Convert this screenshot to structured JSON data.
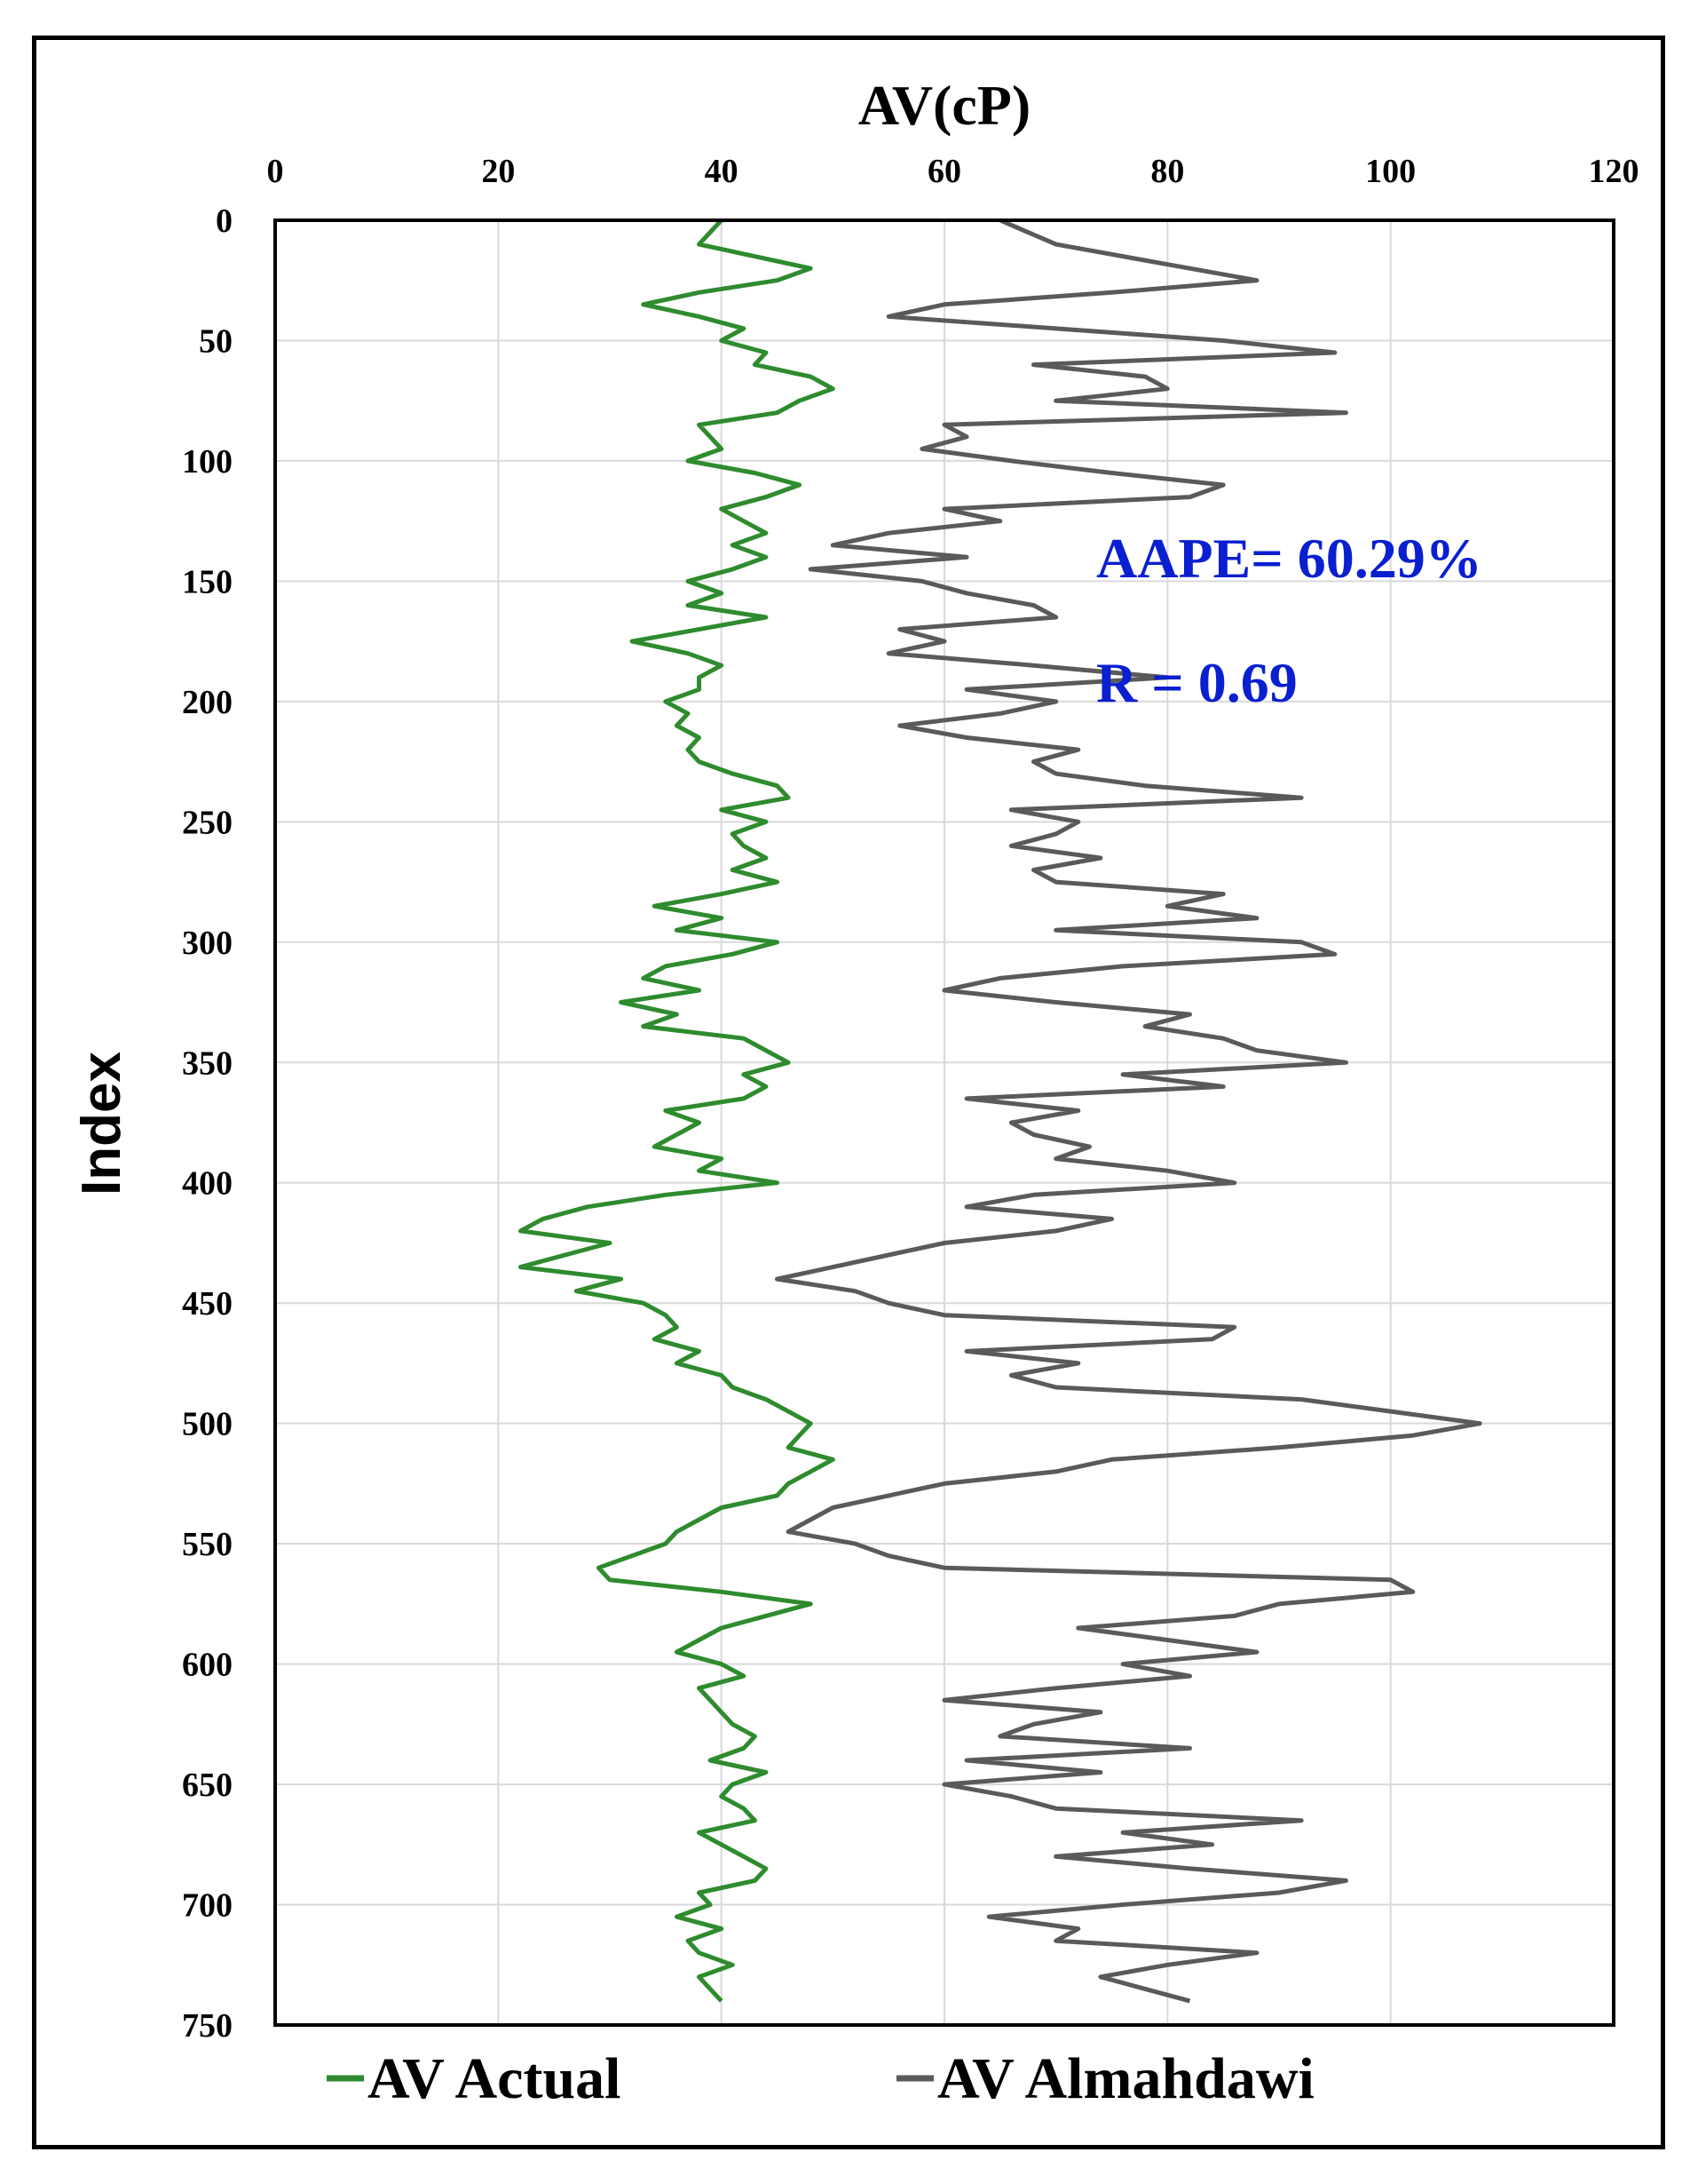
{
  "colors": {
    "actual": "#2e8b2e",
    "almahdawi": "#5a5a5a",
    "annotation": "#0a1fd0",
    "grid": "#d9d9d9"
  },
  "chart_data": {
    "type": "line",
    "orientation": "vertical-index",
    "xlabel": "AV(cP)",
    "ylabel": "Index",
    "xlim": [
      0,
      120
    ],
    "ylim": [
      0,
      750
    ],
    "y_inverted": true,
    "x_ticks": [
      "0",
      "20",
      "40",
      "60",
      "80",
      "100",
      "120"
    ],
    "y_ticks": [
      "0",
      "50",
      "100",
      "150",
      "200",
      "250",
      "300",
      "350",
      "400",
      "450",
      "500",
      "550",
      "600",
      "650",
      "700",
      "750"
    ],
    "grid": true,
    "annotations": [
      "AAPE= 60.29%",
      "R = 0.69"
    ],
    "legend_position": "bottom",
    "series": [
      {
        "name": "AV Actual",
        "color": "#2e8b2e",
        "index": [
          0,
          10,
          20,
          25,
          30,
          35,
          40,
          45,
          50,
          55,
          60,
          65,
          70,
          75,
          80,
          85,
          90,
          95,
          100,
          105,
          110,
          115,
          120,
          125,
          130,
          135,
          140,
          145,
          150,
          155,
          160,
          165,
          170,
          175,
          180,
          185,
          190,
          195,
          200,
          205,
          210,
          215,
          220,
          225,
          230,
          235,
          240,
          245,
          250,
          255,
          260,
          265,
          270,
          275,
          280,
          285,
          290,
          295,
          300,
          305,
          310,
          315,
          320,
          325,
          330,
          335,
          340,
          345,
          350,
          355,
          360,
          365,
          370,
          375,
          380,
          385,
          390,
          395,
          400,
          405,
          410,
          415,
          420,
          425,
          430,
          435,
          440,
          445,
          450,
          455,
          460,
          465,
          470,
          475,
          480,
          485,
          490,
          495,
          500,
          505,
          510,
          515,
          520,
          525,
          530,
          535,
          540,
          545,
          550,
          555,
          560,
          565,
          570,
          575,
          580,
          585,
          590,
          595,
          600,
          605,
          610,
          615,
          620,
          625,
          630,
          635,
          640,
          645,
          650,
          655,
          660,
          665,
          670,
          675,
          680,
          685,
          690,
          695,
          700,
          705,
          710,
          715,
          720,
          725,
          730,
          735,
          740
        ],
        "values": [
          40,
          38,
          48,
          45,
          38,
          33,
          38,
          42,
          40,
          44,
          43,
          48,
          50,
          47,
          45,
          38,
          39,
          40,
          37,
          43,
          47,
          44,
          40,
          42,
          44,
          41,
          44,
          41,
          37,
          40,
          37,
          44,
          38,
          32,
          37,
          40,
          38,
          38,
          35,
          37,
          36,
          38,
          37,
          38,
          41,
          45,
          46,
          40,
          44,
          41,
          42,
          44,
          41,
          45,
          40,
          34,
          40,
          36,
          45,
          41,
          35,
          33,
          38,
          31,
          36,
          33,
          42,
          44,
          46,
          42,
          44,
          42,
          35,
          38,
          36,
          34,
          40,
          38,
          45,
          35,
          28,
          24,
          22,
          30,
          26,
          22,
          31,
          27,
          33,
          35,
          36,
          34,
          38,
          36,
          40,
          41,
          44,
          46,
          48,
          47,
          46,
          50,
          48,
          46,
          45,
          40,
          38,
          36,
          35,
          32,
          29,
          30,
          40,
          48,
          44,
          40,
          38,
          36,
          40,
          42,
          38,
          39,
          40,
          41,
          43,
          42,
          39,
          44,
          41,
          40,
          42,
          43,
          38,
          40,
          42,
          44,
          43,
          38,
          39,
          36,
          40,
          37,
          38,
          41,
          38,
          39,
          40
        ]
      },
      {
        "name": "AV Almahdawi",
        "color": "#5a5a5a",
        "index": [
          0,
          10,
          20,
          25,
          30,
          35,
          40,
          45,
          50,
          55,
          60,
          65,
          70,
          75,
          80,
          85,
          90,
          95,
          100,
          105,
          110,
          115,
          120,
          125,
          130,
          135,
          140,
          145,
          150,
          155,
          160,
          165,
          170,
          175,
          180,
          185,
          190,
          195,
          200,
          205,
          210,
          215,
          220,
          225,
          230,
          235,
          240,
          245,
          250,
          255,
          260,
          265,
          270,
          275,
          280,
          285,
          290,
          295,
          300,
          305,
          310,
          315,
          320,
          325,
          330,
          335,
          340,
          345,
          350,
          355,
          360,
          365,
          370,
          375,
          380,
          385,
          390,
          395,
          400,
          405,
          410,
          415,
          420,
          425,
          430,
          435,
          440,
          445,
          450,
          455,
          460,
          465,
          470,
          475,
          480,
          485,
          490,
          495,
          500,
          505,
          510,
          515,
          520,
          525,
          530,
          535,
          540,
          545,
          550,
          555,
          560,
          565,
          570,
          575,
          580,
          585,
          590,
          595,
          600,
          605,
          610,
          615,
          620,
          625,
          630,
          635,
          640,
          645,
          650,
          655,
          660,
          665,
          670,
          675,
          680,
          685,
          690,
          695,
          700,
          705,
          710,
          715,
          720,
          725,
          730,
          735,
          740
        ],
        "values": [
          65,
          70,
          82,
          88,
          75,
          60,
          55,
          70,
          85,
          95,
          68,
          78,
          80,
          70,
          96,
          60,
          62,
          58,
          66,
          75,
          85,
          82,
          60,
          65,
          55,
          50,
          62,
          48,
          58,
          62,
          68,
          70,
          56,
          60,
          55,
          68,
          80,
          62,
          70,
          65,
          56,
          62,
          72,
          68,
          70,
          78,
          92,
          66,
          72,
          70,
          66,
          74,
          68,
          70,
          85,
          80,
          88,
          70,
          92,
          95,
          76,
          65,
          60,
          70,
          82,
          78,
          85,
          88,
          96,
          76,
          85,
          62,
          72,
          66,
          68,
          73,
          70,
          80,
          86,
          68,
          62,
          75,
          70,
          60,
          55,
          50,
          45,
          52,
          55,
          60,
          86,
          84,
          62,
          72,
          66,
          70,
          92,
          100,
          108,
          102,
          90,
          75,
          70,
          60,
          55,
          50,
          48,
          46,
          52,
          55,
          60,
          100,
          102,
          90,
          86,
          72,
          80,
          88,
          76,
          82,
          70,
          60,
          74,
          68,
          65,
          82,
          62,
          74,
          60,
          66,
          70,
          92,
          76,
          84,
          70,
          82,
          96,
          90,
          76,
          64,
          72,
          70,
          88,
          80,
          74,
          78,
          82
        ]
      }
    ]
  }
}
